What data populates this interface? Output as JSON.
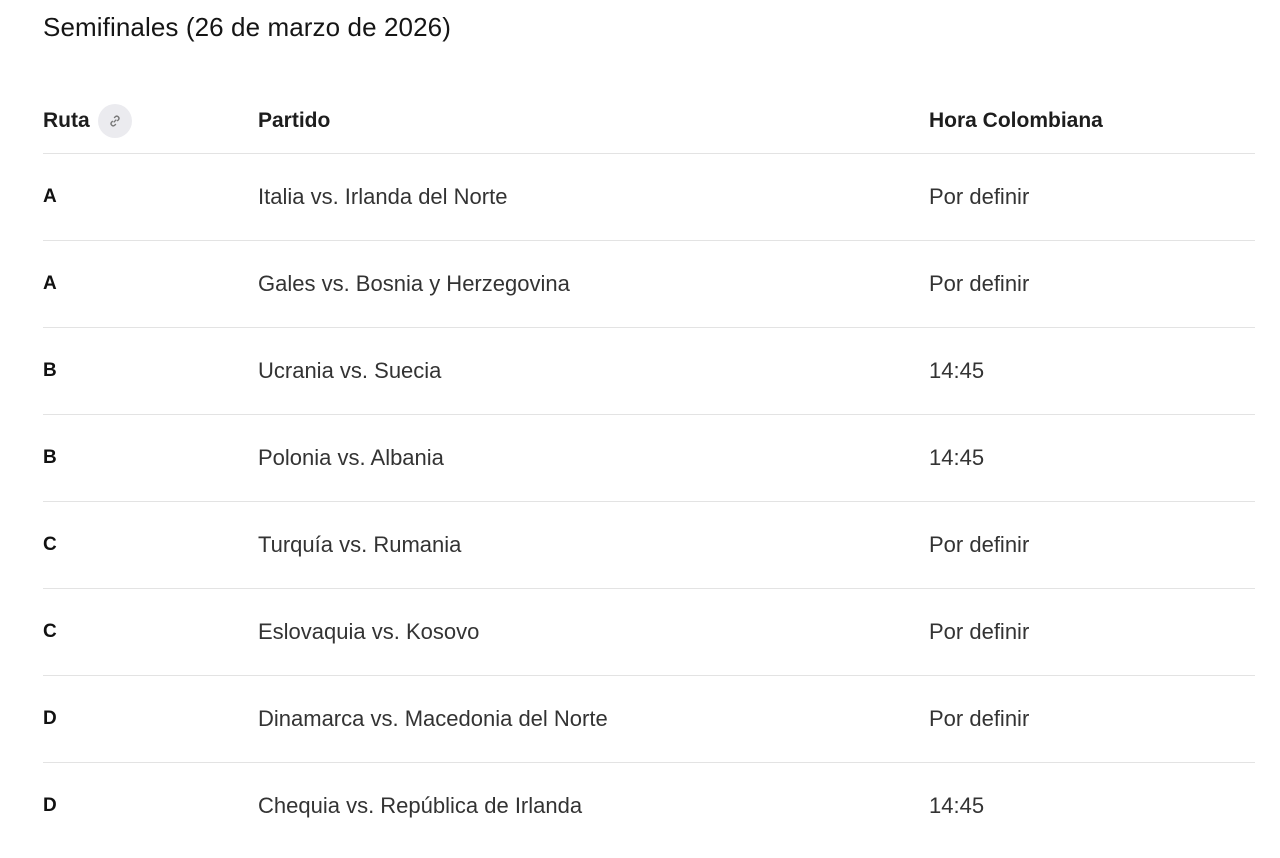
{
  "title": "Semifinales (26 de marzo de 2026)",
  "headers": {
    "ruta": "Ruta",
    "partido": "Partido",
    "hora": "Hora Colombiana"
  },
  "icons": {
    "header_link": "link-icon"
  },
  "rows": [
    {
      "ruta": "A",
      "partido": "Italia vs. Irlanda del Norte",
      "hora": "Por definir"
    },
    {
      "ruta": "A",
      "partido": "Gales vs. Bosnia y Herzegovina",
      "hora": "Por definir"
    },
    {
      "ruta": "B",
      "partido": "Ucrania vs. Suecia",
      "hora": "14:45"
    },
    {
      "ruta": "B",
      "partido": "Polonia vs. Albania",
      "hora": "14:45"
    },
    {
      "ruta": "C",
      "partido": "Turquía vs. Rumania",
      "hora": "Por definir"
    },
    {
      "ruta": "C",
      "partido": "Eslovaquia vs. Kosovo",
      "hora": "Por definir"
    },
    {
      "ruta": "D",
      "partido": "Dinamarca vs. Macedonia del Norte",
      "hora": "Por definir"
    },
    {
      "ruta": "D",
      "partido": "Chequia vs. República de Irlanda",
      "hora": "14:45"
    }
  ]
}
